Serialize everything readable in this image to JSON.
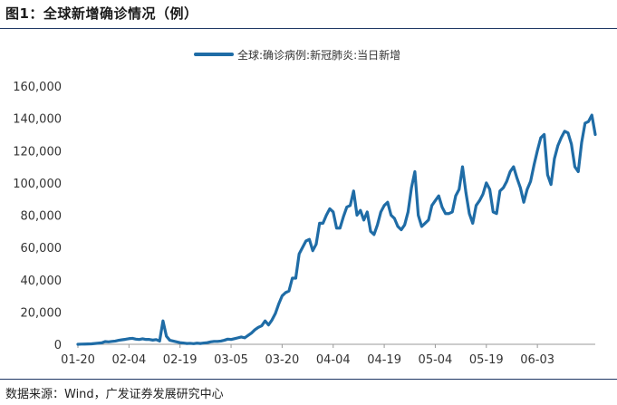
{
  "figure": {
    "title": "图1：全球新增确诊情况（例）",
    "source": "数据来源：Wind，广发证券发展研究中心"
  },
  "colors": {
    "series": "#1f6ca6",
    "rule": "#1f3864",
    "axis": "#999999"
  },
  "chart_data": {
    "type": "line",
    "title": "",
    "xlabel": "",
    "ylabel": "",
    "ylim": [
      0,
      160000
    ],
    "yticks": [
      0,
      20000,
      40000,
      60000,
      80000,
      100000,
      120000,
      140000,
      160000
    ],
    "ytick_labels": [
      "0",
      "20,000",
      "40,000",
      "60,000",
      "80,000",
      "100,000",
      "120,000",
      "140,000",
      "160,000"
    ],
    "xtick_labels": [
      "01-20",
      "02-04",
      "02-19",
      "03-05",
      "03-20",
      "04-04",
      "04-19",
      "05-04",
      "05-19",
      "06-03"
    ],
    "xtick_index": [
      0,
      15,
      30,
      45,
      60,
      75,
      90,
      105,
      120,
      135
    ],
    "grid": false,
    "legend_position": "top",
    "series": [
      {
        "name": "全球:确诊病例:新冠肺炎:当日新增",
        "x_start": "01-20",
        "values": [
          0,
          100,
          150,
          200,
          300,
          500,
          700,
          900,
          1700,
          1500,
          1800,
          2000,
          2500,
          2800,
          3100,
          3500,
          3700,
          3200,
          3000,
          3400,
          3000,
          3000,
          2600,
          2900,
          2000,
          14500,
          5000,
          2500,
          2000,
          1500,
          1000,
          800,
          500,
          600,
          400,
          700,
          500,
          800,
          1000,
          1500,
          1800,
          1800,
          2000,
          2500,
          3200,
          3000,
          3500,
          4000,
          4500,
          4000,
          5500,
          7000,
          9000,
          10500,
          11500,
          14500,
          12000,
          15000,
          19000,
          25000,
          30000,
          32000,
          33000,
          41000,
          41000,
          56000,
          60000,
          64000,
          65000,
          58000,
          62000,
          75000,
          75000,
          80000,
          84000,
          82000,
          72000,
          72000,
          79000,
          85000,
          86000,
          95000,
          80000,
          83000,
          77000,
          82000,
          70000,
          68000,
          74000,
          82000,
          86000,
          88000,
          80000,
          78000,
          73000,
          71000,
          74000,
          82000,
          97000,
          107000,
          80000,
          73000,
          75000,
          77000,
          86000,
          89000,
          92000,
          85000,
          81000,
          81000,
          82000,
          92000,
          96000,
          110000,
          94000,
          81000,
          75000,
          86000,
          89000,
          93000,
          100000,
          96000,
          82000,
          81000,
          95000,
          97000,
          101000,
          107000,
          110000,
          103000,
          97000,
          88000,
          96000,
          101000,
          111000,
          120000,
          128000,
          130000,
          105000,
          99000,
          115000,
          123000,
          128000,
          132000,
          131000,
          124000,
          110000,
          107000,
          125000,
          137000,
          138000,
          142000,
          130000
        ]
      }
    ]
  }
}
